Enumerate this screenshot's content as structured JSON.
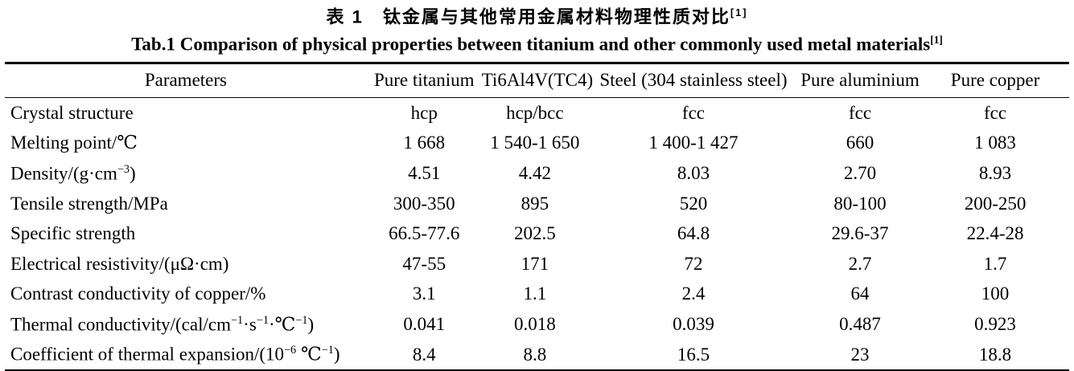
{
  "caption_cn": {
    "text": "表 1　钛金属与其他常用金属材料物理性质对比",
    "ref": "[1]"
  },
  "caption_en": {
    "text": "Tab.1 Comparison of physical properties between titanium and other commonly used metal materials",
    "ref": "[1]"
  },
  "table": {
    "columns": [
      "Parameters",
      "Pure titanium",
      "Ti6Al4V(TC4)",
      "Steel (304 stainless steel)",
      "Pure aluminium",
      "Pure copper"
    ],
    "rows": [
      {
        "param": [
          {
            "t": "Crystal structure"
          }
        ],
        "values": [
          "hcp",
          "hcp/bcc",
          "fcc",
          "fcc",
          "fcc"
        ]
      },
      {
        "param": [
          {
            "t": "Melting point/℃"
          }
        ],
        "values": [
          "1 668",
          "1 540-1 650",
          "1 400-1 427",
          "660",
          "1 083"
        ]
      },
      {
        "param": [
          {
            "t": "Density/(g·cm"
          },
          {
            "sup": "−3"
          },
          {
            "t": ")"
          }
        ],
        "values": [
          "4.51",
          "4.42",
          "8.03",
          "2.70",
          "8.93"
        ]
      },
      {
        "param": [
          {
            "t": "Tensile strength/MPa"
          }
        ],
        "values": [
          "300-350",
          "895",
          "520",
          "80-100",
          "200-250"
        ]
      },
      {
        "param": [
          {
            "t": "Specific strength"
          }
        ],
        "values": [
          "66.5-77.6",
          "202.5",
          "64.8",
          "29.6-37",
          "22.4-28"
        ]
      },
      {
        "param": [
          {
            "t": "Electrical resistivity/(μΩ·cm)"
          }
        ],
        "values": [
          "47-55",
          "171",
          "72",
          "2.7",
          "1.7"
        ]
      },
      {
        "param": [
          {
            "t": "Contrast conductivity of copper/%"
          }
        ],
        "values": [
          "3.1",
          "1.1",
          "2.4",
          "64",
          "100"
        ]
      },
      {
        "param": [
          {
            "t": "Thermal conductivity/(cal/cm"
          },
          {
            "sup": "−1"
          },
          {
            "t": "·s"
          },
          {
            "sup": "−1"
          },
          {
            "t": "·℃"
          },
          {
            "sup": "−1"
          },
          {
            "t": ")"
          }
        ],
        "values": [
          "0.041",
          "0.018",
          "0.039",
          "0.487",
          "0.923"
        ]
      },
      {
        "param": [
          {
            "t": "Coefficient of thermal expansion/(10"
          },
          {
            "sup": "−6"
          },
          {
            "t": " ℃"
          },
          {
            "sup": "−1"
          },
          {
            "t": ")"
          }
        ],
        "values": [
          "8.4",
          "8.8",
          "16.5",
          "23",
          "18.8"
        ]
      }
    ]
  },
  "colors": {
    "background": "#ffffff",
    "text": "#000000",
    "rule": "#000000"
  }
}
